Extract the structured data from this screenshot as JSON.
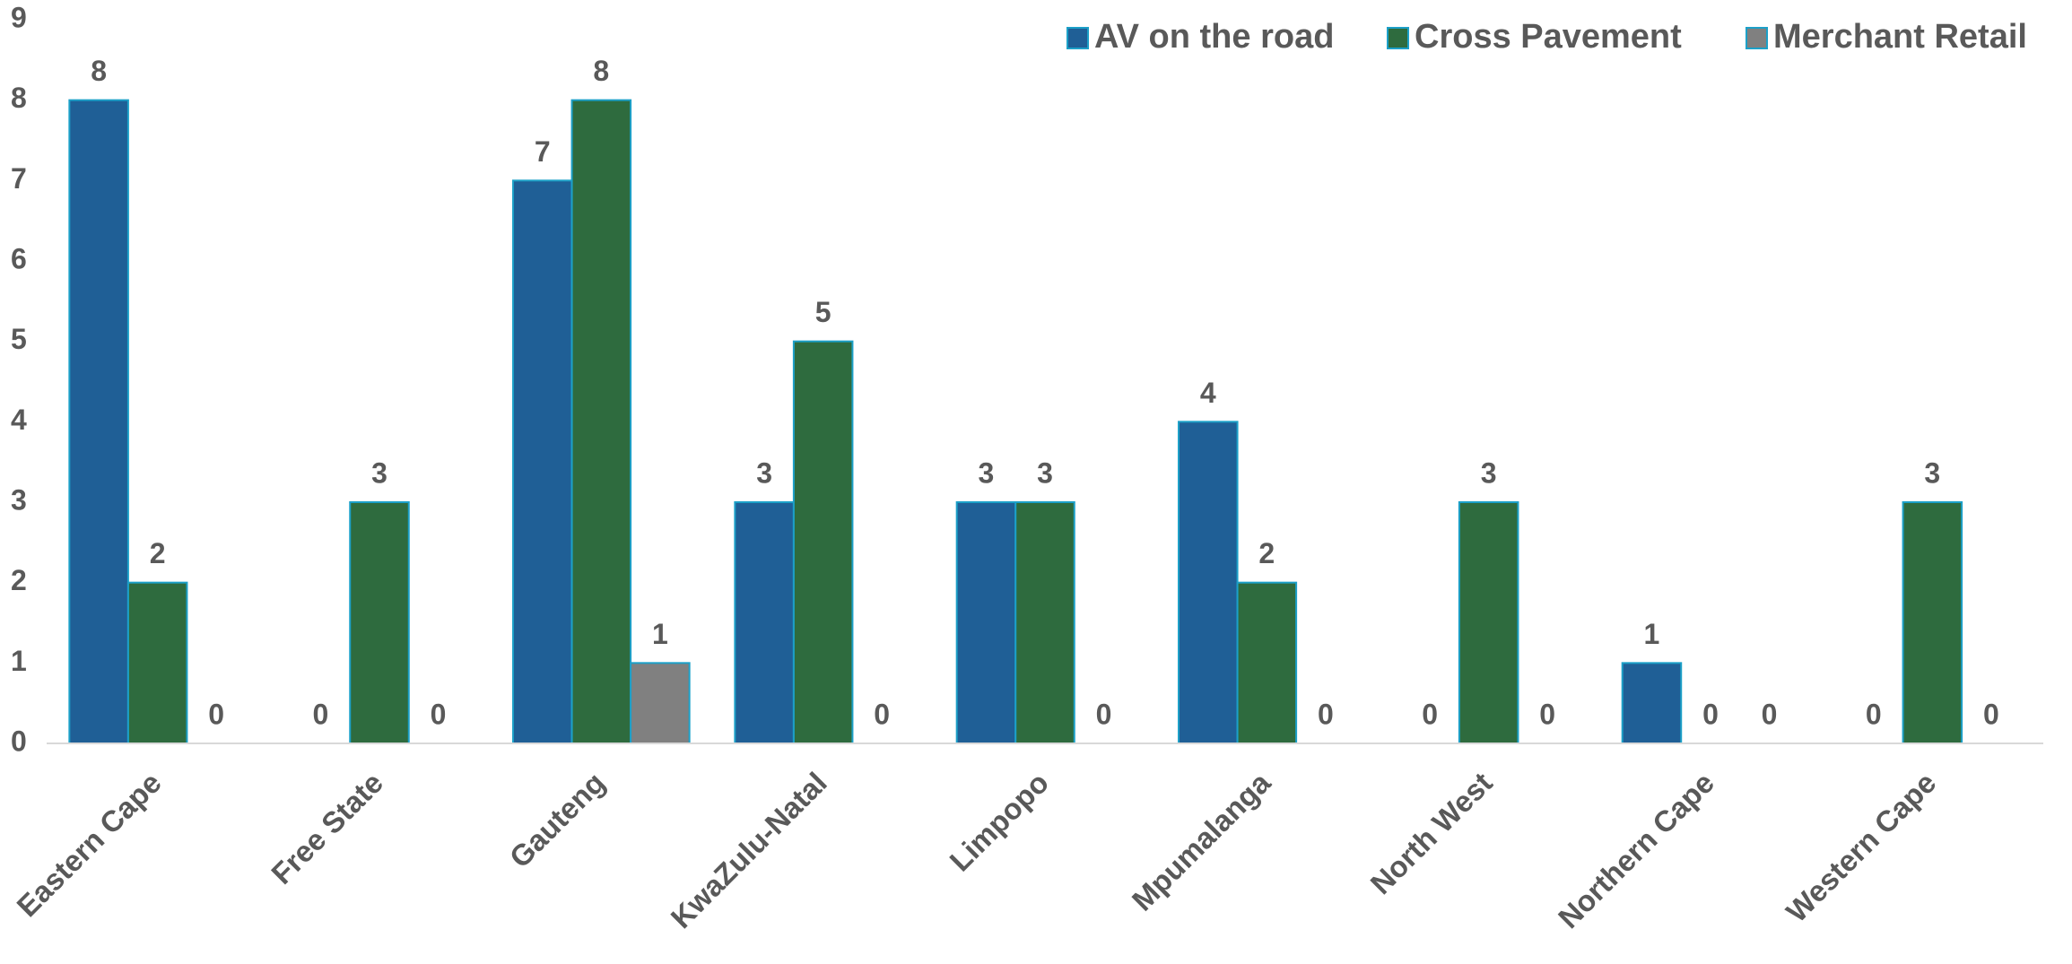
{
  "chart_data": {
    "type": "bar",
    "categories": [
      "Eastern Cape",
      "Free State",
      "Gauteng",
      "KwaZulu-Natal",
      "Limpopo",
      "Mpumalanga",
      "North West",
      "Northern Cape",
      "Western Cape"
    ],
    "series": [
      {
        "name": "AV on the road",
        "color": "#1f5f96",
        "values": [
          8,
          0,
          7,
          3,
          3,
          4,
          0,
          1,
          0
        ]
      },
      {
        "name": "Cross Pavement",
        "color": "#2e6b3e",
        "values": [
          2,
          3,
          8,
          5,
          3,
          2,
          3,
          0,
          3
        ]
      },
      {
        "name": "Merchant Retail",
        "color": "#808080",
        "values": [
          0,
          0,
          1,
          0,
          0,
          0,
          0,
          0,
          0
        ]
      }
    ],
    "ylim": [
      0,
      9
    ],
    "yticks": [
      0,
      1,
      2,
      3,
      4,
      5,
      6,
      7,
      8,
      9
    ],
    "grid": false,
    "legend": "top-right"
  }
}
